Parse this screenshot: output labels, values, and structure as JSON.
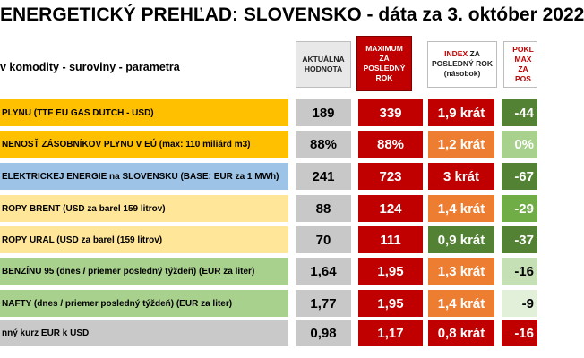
{
  "title": "ENERGETICKÝ PREHĽAD: SLOVENSKO - dáta za 3. október 2022",
  "header": {
    "commodity": "v komodity - suroviny - parametra",
    "current": "AKTUÁLNA HODNOTA",
    "max_line1": "MAXIMUM",
    "max_line2": "ZA POSLEDNÝ ROK",
    "index_red": "INDEX",
    "index_rest": " ZA POSLEDNÝ ROK (násobok)",
    "pokles": "POKL MAX ZA POS"
  },
  "rows": [
    {
      "name": "PLYNU (TTF EU GAS DUTCH - USD)",
      "current": "189",
      "max": "339",
      "index": "1,9 krát",
      "drop": "-44",
      "name_bg": "#ffc000",
      "index_bg": "#c00000",
      "index_color": "#ffffff",
      "drop_bg": "#548235"
    },
    {
      "name": "NENOSŤ ZÁSOBNÍKOV PLYNU V EÚ (max: 110 miliárd m3)",
      "current": "88%",
      "max": "88%",
      "index": "1,2 krát",
      "drop": "0%",
      "name_bg": "#ffc000",
      "index_bg": "#ed7d31",
      "index_color": "#ffffff",
      "drop_bg": "#a9d18e"
    },
    {
      "name": "ELEKTRICKEJ ENERGIE na SLOVENSKU (BASE: EUR za 1 MWh)",
      "current": "241",
      "max": "723",
      "index": "3 krát",
      "drop": "-67",
      "name_bg": "#9dc3e6",
      "index_bg": "#c00000",
      "index_color": "#ffffff",
      "drop_bg": "#548235"
    },
    {
      "name": "ROPY BRENT (USD za barel 159 litrov)",
      "current": "88",
      "max": "124",
      "index": "1,4 krát",
      "drop": "-29",
      "name_bg": "#ffe699",
      "index_bg": "#ed7d31",
      "index_color": "#ffffff",
      "drop_bg": "#70ad47"
    },
    {
      "name": "ROPY URAL (USD za barel (159 litrov)",
      "current": "70",
      "max": "111",
      "index": "0,9 krát",
      "drop": "-37",
      "name_bg": "#ffe699",
      "index_bg": "#548235",
      "index_color": "#ffffff",
      "drop_bg": "#548235"
    },
    {
      "name": "BENZÍNU 95 (dnes / priemer posledný týždeň) (EUR za liter)",
      "current": "1,64",
      "max": "1,95",
      "index": "1,3 krát",
      "drop": "-16",
      "name_bg": "#a9d18e",
      "index_bg": "#ed7d31",
      "index_color": "#ffffff",
      "drop_bg": "#c5e0b4"
    },
    {
      "name": "NAFTY (dnes / priemer posledný týždeň) (EUR za liter)",
      "current": "1,77",
      "max": "1,95",
      "index": "1,4 krát",
      "drop": "-9",
      "name_bg": "#a9d18e",
      "index_bg": "#ed7d31",
      "index_color": "#ffffff",
      "drop_bg": "#e2f0d9"
    },
    {
      "name": "nný kurz EUR k USD",
      "current": "0,98",
      "max": "1,17",
      "index": "0,8 krát",
      "drop": "-16",
      "name_bg": "#c9c9c9",
      "index_bg": "#c00000",
      "index_color": "#ffffff",
      "drop_bg": "#c00000"
    }
  ]
}
